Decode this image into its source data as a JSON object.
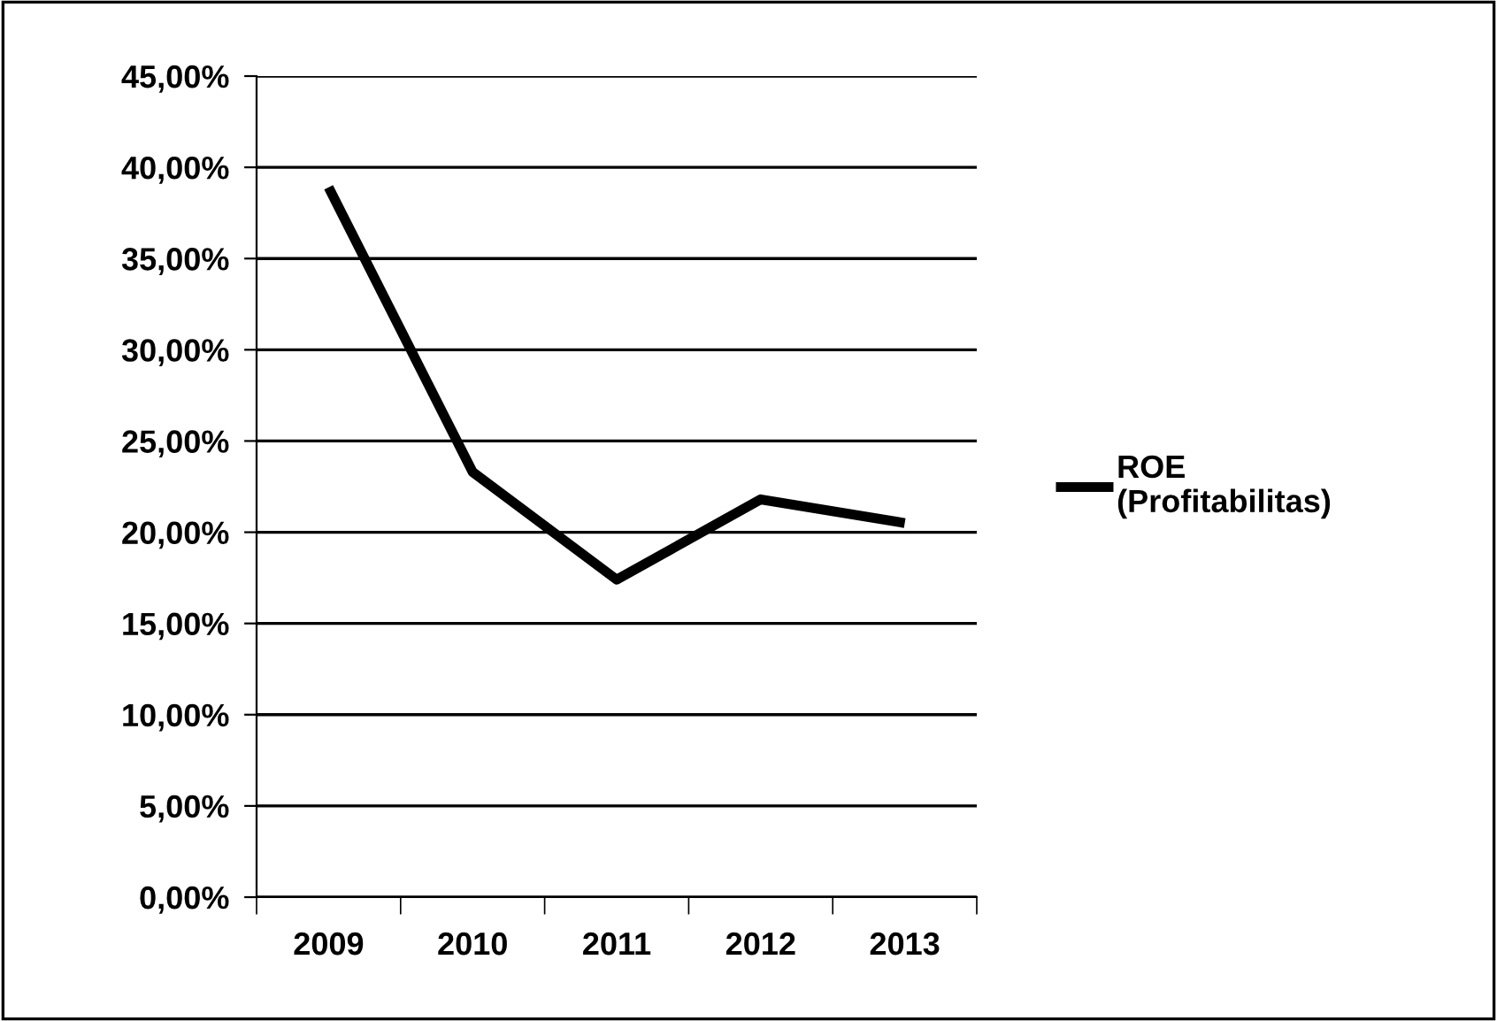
{
  "chart_data": {
    "type": "line",
    "categories": [
      "2009",
      "2010",
      "2011",
      "2012",
      "2013"
    ],
    "series": [
      {
        "name": "ROE\n(Profitabilitas)",
        "color": "#000000",
        "values": [
          38.9,
          23.3,
          17.4,
          21.8,
          20.5
        ]
      }
    ],
    "ylim": [
      0,
      45
    ],
    "yticks": [
      {
        "value": 0,
        "label": "0,00%"
      },
      {
        "value": 5,
        "label": "5,00%"
      },
      {
        "value": 10,
        "label": "10,00%"
      },
      {
        "value": 15,
        "label": "15,00%"
      },
      {
        "value": 20,
        "label": "20,00%"
      },
      {
        "value": 25,
        "label": "25,00%"
      },
      {
        "value": 30,
        "label": "30,00%"
      },
      {
        "value": 35,
        "label": "35,00%"
      },
      {
        "value": 40,
        "label": "40,00%"
      },
      {
        "value": 45,
        "label": "45,00%"
      }
    ],
    "grid": "y",
    "legend": "right",
    "marker": "none",
    "line_style": "solid"
  }
}
